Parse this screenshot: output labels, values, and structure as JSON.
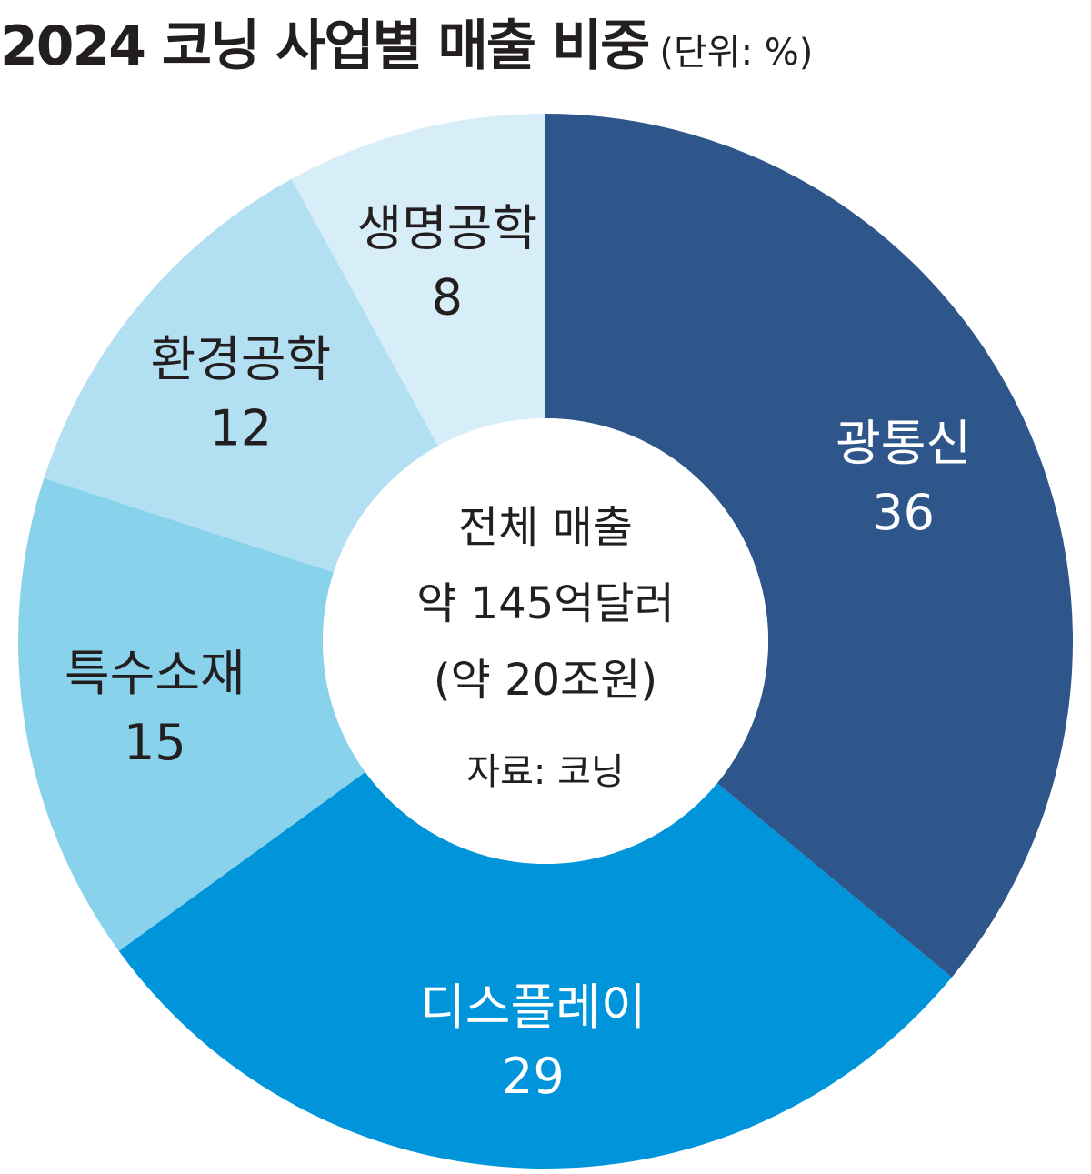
{
  "title": "2024 코닝 사업별 매출 비중",
  "unit": "(단위: %)",
  "center": {
    "line1": "전체 매출",
    "line2": "약 145억달러",
    "line3": "(약 20조원)",
    "source": "자료: 코닝"
  },
  "chart_data": {
    "type": "pie",
    "title": "2024 코닝 사업별 매출 비중",
    "unit": "%",
    "donut": true,
    "slices": [
      {
        "label": "광통신",
        "value": 36,
        "color": "#2e568b",
        "text_color": "#ffffff"
      },
      {
        "label": "디스플레이",
        "value": 29,
        "color": "#0095db",
        "text_color": "#ffffff"
      },
      {
        "label": "특수소재",
        "value": 15,
        "color": "#89d2ec",
        "text_color": "#231f20"
      },
      {
        "label": "환경공학",
        "value": 12,
        "color": "#b2e0f2",
        "text_color": "#231f20"
      },
      {
        "label": "생명공학",
        "value": 8,
        "color": "#d7eef8",
        "text_color": "#231f20"
      }
    ]
  }
}
